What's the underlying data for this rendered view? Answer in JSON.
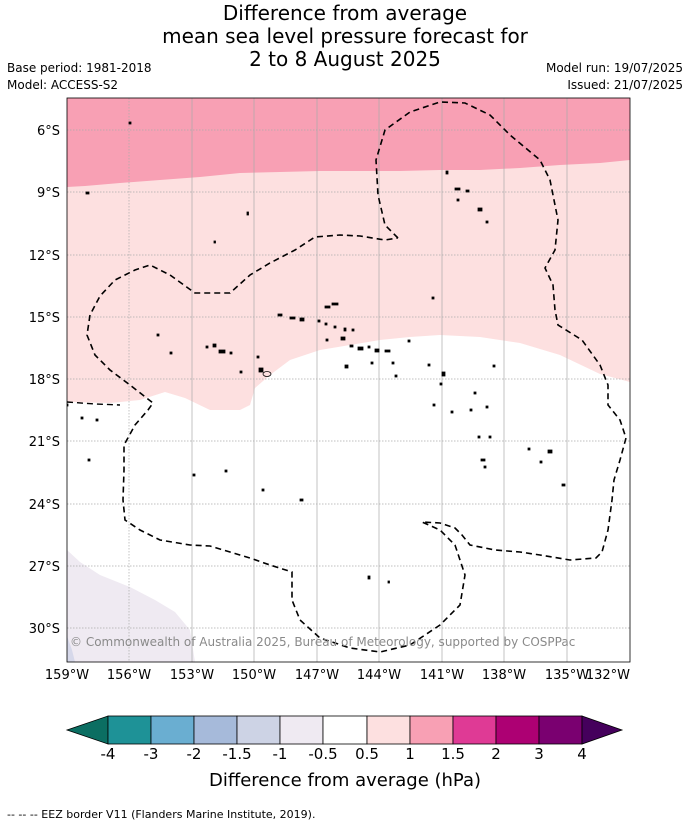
{
  "title": {
    "line1": "Difference from average",
    "line2": "mean sea level pressure forecast for",
    "line3": "2 to 8 August 2025"
  },
  "meta": {
    "base_period": "Base period: 1981-2018",
    "model": "Model: ACCESS-S2",
    "model_run": "Model run: 19/07/2025",
    "issued": "Issued: 21/07/2025"
  },
  "map": {
    "lat_ticks": [
      "6°S",
      "9°S",
      "12°S",
      "15°S",
      "18°S",
      "21°S",
      "24°S",
      "27°S",
      "30°S"
    ],
    "lon_ticks": [
      "159°W",
      "156°W",
      "153°W",
      "150°W",
      "147°W",
      "144°W",
      "141°W",
      "138°W",
      "135°W",
      "132°W"
    ],
    "copyright": "© Commonwealth of Australia 2025, Bureau of Meteorology, supported by COSPPac",
    "fill_colors": {
      "band_1_to_1_5": "#f8a0b4",
      "band_0_5_to_1": "#fde0e0",
      "band_neg_0_5_to_neg_1": "#efeaf2",
      "band_neg_1_to_neg_1_5": "#d6d8ea"
    }
  },
  "colorbar": {
    "labels": [
      "-4",
      "-3",
      "-2",
      "-1.5",
      "-1",
      "-0.5",
      "0.5",
      "1",
      "1.5",
      "2",
      "3",
      "4"
    ],
    "colors": [
      "#0b6e62",
      "#1e9297",
      "#6aaed1",
      "#a6bada",
      "#cdd3e5",
      "#efeaf2",
      "#ffffff",
      "#fde0e0",
      "#f8a0b4",
      "#df3a95",
      "#ad0073",
      "#7a0070",
      "#45005c"
    ],
    "title": "Difference from average (hPa)"
  },
  "footnote": "--  --  -- EEZ border V11 (Flanders Marine Institute, 2019)."
}
